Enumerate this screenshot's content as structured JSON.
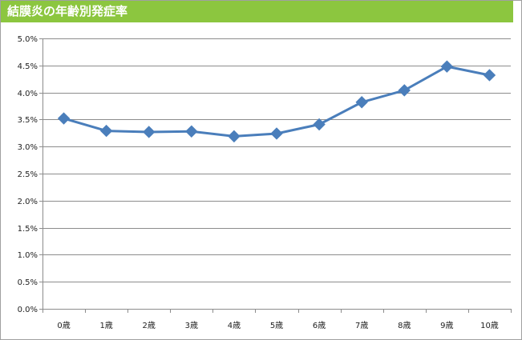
{
  "chart_data": {
    "type": "line",
    "title": "結膜炎の年齢別発症率",
    "categories": [
      "0歳",
      "1歳",
      "2歳",
      "3歳",
      "4歳",
      "5歳",
      "6歳",
      "7歳",
      "8歳",
      "9歳",
      "10歳"
    ],
    "series": [
      {
        "values": [
          3.52,
          3.29,
          3.27,
          3.28,
          3.19,
          3.24,
          3.41,
          3.82,
          4.04,
          4.48,
          4.32
        ],
        "color": "#4a7ebb",
        "marker": "diamond"
      }
    ],
    "y_ticks": [
      "0.0%",
      "0.5%",
      "1.0%",
      "1.5%",
      "2.0%",
      "2.5%",
      "3.0%",
      "3.5%",
      "4.0%",
      "4.5%",
      "5.0%"
    ],
    "ylim": [
      0,
      5
    ],
    "y_unit": "%",
    "grid": true,
    "title_bar_color": "#8cc63f"
  }
}
